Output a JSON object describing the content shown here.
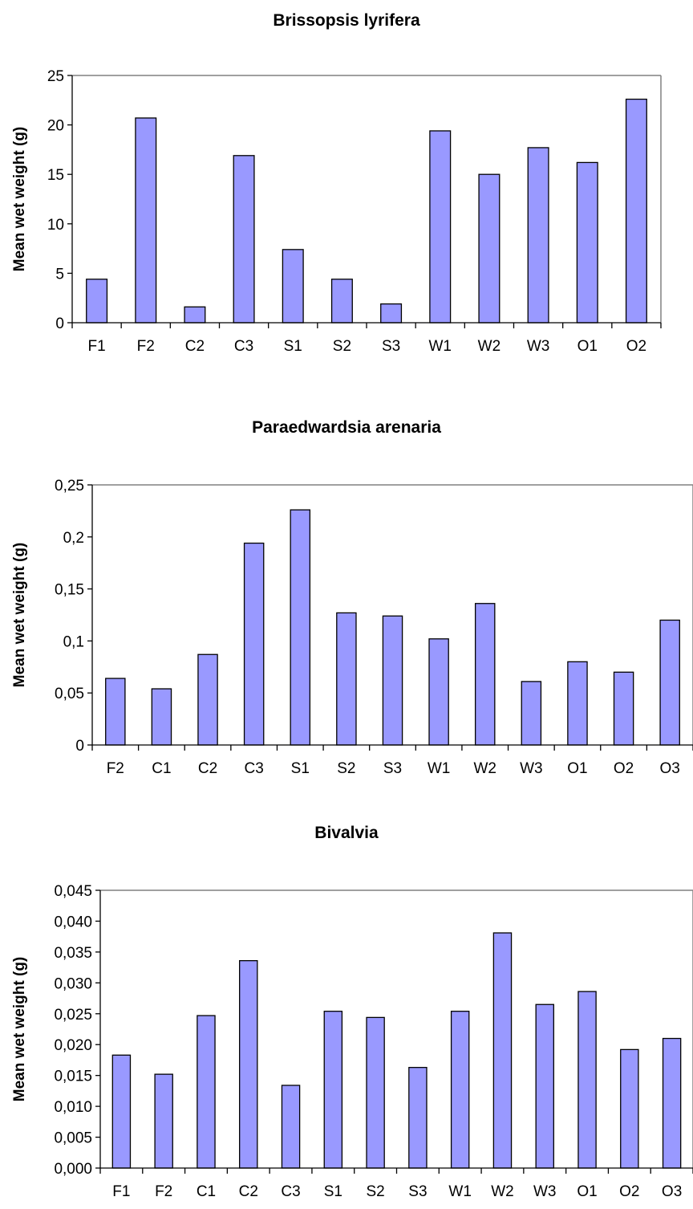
{
  "chart_data": [
    {
      "type": "bar",
      "title": "Brissopsis lyrifera",
      "ylabel": "Mean wet weight (g)",
      "xlabel": "",
      "categories": [
        "F1",
        "F2",
        "C2",
        "C3",
        "S1",
        "S2",
        "S3",
        "W1",
        "W2",
        "W3",
        "O1",
        "O2"
      ],
      "values": [
        4.4,
        20.7,
        1.6,
        16.9,
        7.4,
        4.4,
        1.9,
        19.4,
        15.0,
        17.7,
        16.2,
        22.6
      ],
      "ylim": [
        0,
        25
      ],
      "yticks": [
        "0",
        "5",
        "10",
        "15",
        "20",
        "25"
      ],
      "bar_color": "#9999ff",
      "grid": false
    },
    {
      "type": "bar",
      "title": "Paraedwardsia arenaria",
      "ylabel": "Mean wet weight (g)",
      "xlabel": "",
      "categories": [
        "F2",
        "C1",
        "C2",
        "C3",
        "S1",
        "S2",
        "S3",
        "W1",
        "W2",
        "W3",
        "O1",
        "O2",
        "O3"
      ],
      "values": [
        0.064,
        0.054,
        0.087,
        0.194,
        0.226,
        0.127,
        0.124,
        0.102,
        0.136,
        0.061,
        0.08,
        0.07,
        0.12
      ],
      "ylim": [
        0,
        0.25
      ],
      "yticks": [
        "0",
        "0,05",
        "0,1",
        "0,15",
        "0,2",
        "0,25"
      ],
      "bar_color": "#9999ff",
      "grid": false
    },
    {
      "type": "bar",
      "title": "Bivalvia",
      "ylabel": "Mean wet weight (g)",
      "xlabel": "",
      "categories": [
        "F1",
        "F2",
        "C1",
        "C2",
        "C3",
        "S1",
        "S2",
        "S3",
        "W1",
        "W2",
        "W3",
        "O1",
        "O2",
        "O3"
      ],
      "values": [
        0.0183,
        0.0152,
        0.0247,
        0.0336,
        0.0134,
        0.0254,
        0.0244,
        0.0163,
        0.0254,
        0.0381,
        0.0265,
        0.0286,
        0.0192,
        0.021
      ],
      "ylim": [
        0,
        0.045
      ],
      "yticks": [
        "0,000",
        "0,005",
        "0,010",
        "0,015",
        "0,020",
        "0,025",
        "0,030",
        "0,035",
        "0,040",
        "0,045"
      ],
      "bar_color": "#9999ff",
      "grid": false
    }
  ]
}
